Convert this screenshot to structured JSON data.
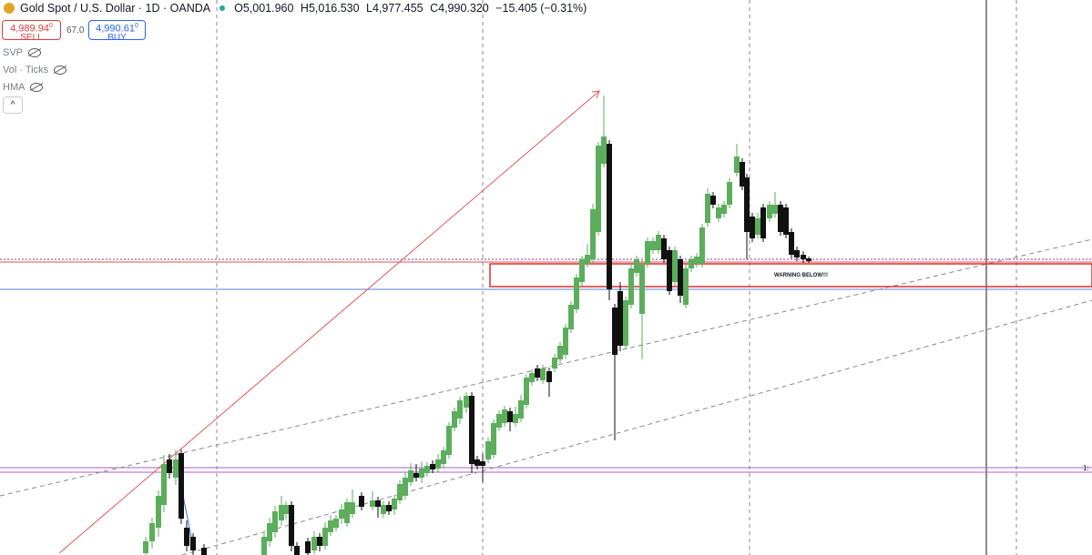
{
  "header": {
    "symbol": "Gold Spot / U.S. Dollar · 1D · OANDA",
    "open": "O5,001.960",
    "high": "H5,016.530",
    "low": "L4,977.455",
    "close": "C4,990.320",
    "change": "−15.405 (−0.31%)"
  },
  "trade": {
    "sell_price": "4,989.94",
    "sell_sup": "0",
    "sell_label": "SELL",
    "spread": "67.0",
    "buy_price": "4,990.61",
    "buy_sup": "0",
    "buy_label": "BUY"
  },
  "indicators": [
    "SVP",
    "Vol · Ticks",
    "HMA"
  ],
  "annotation": "WARNING BELOW!!!",
  "edge_label": "1:"
}
